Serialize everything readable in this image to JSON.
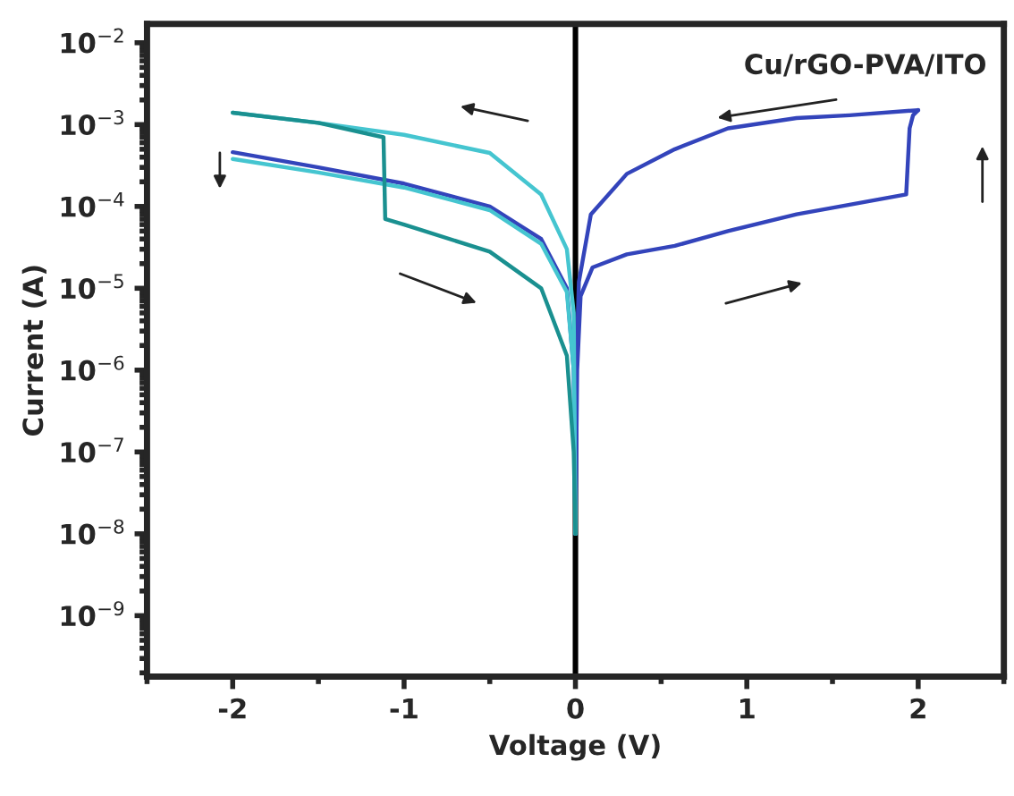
{
  "chart_data": {
    "type": "line",
    "xlabel": "Voltage (V)",
    "ylabel": "Current (A)",
    "log": "y",
    "xlim": [
      -2.5,
      2.5
    ],
    "xticks": [
      -2,
      -1,
      0,
      1,
      2
    ],
    "ylim": [
      1.8e-10,
      0.017
    ],
    "yticks": [
      {
        "value": 0.01,
        "label": "10$^{−2}$"
      },
      {
        "value": 0.001,
        "label": "10$^{−3}$"
      },
      {
        "value": 0.0001,
        "label": "10$^{−4}$"
      },
      {
        "value": 1e-05,
        "label": "10$^{−5}$"
      },
      {
        "value": 1e-06,
        "label": "10$^{−6}$"
      },
      {
        "value": 1e-07,
        "label": "10$^{−7}$"
      },
      {
        "value": 1e-08,
        "label": "10$^{−8}$"
      },
      {
        "value": 1e-09,
        "label": "10$^{−9}$"
      }
    ],
    "grid": false,
    "legend": false,
    "marker": "none",
    "line_style": "solid",
    "ref_lines": [
      {
        "axis": "x",
        "value": 0,
        "color": "#000000",
        "line_style": "solid"
      }
    ],
    "annotations": [
      "Cu/rGO-PVA/ITO"
    ],
    "series": [
      {
        "color": "#3344bb",
        "x": [
          0,
          0.01,
          0.03,
          0.1,
          0.3,
          0.58,
          0.89,
          1.29,
          1.6,
          1.93,
          1.95,
          1.97,
          2.0
        ],
        "values": [
          1e-08,
          1e-06,
          8e-06,
          1.8e-05,
          2.6e-05,
          3.3e-05,
          5e-05,
          8e-05,
          0.000105,
          0.00014,
          0.0009,
          0.0013,
          0.0015
        ]
      },
      {
        "color": "#3344bb",
        "x": [
          0,
          0.005,
          0.02,
          0.09,
          0.3,
          0.58,
          0.89,
          1.29,
          1.6,
          2.0
        ],
        "values": [
          1e-08,
          1e-06,
          1.2e-05,
          8e-05,
          0.00025,
          0.0005,
          0.0009,
          0.0012,
          0.0013,
          0.0015
        ]
      },
      {
        "color": "#3344bb",
        "x": [
          -2,
          -1.5,
          -1,
          -0.5,
          -0.2,
          -0.05,
          -0.01,
          0
        ],
        "values": [
          0.00046,
          0.0003,
          0.00019,
          0.0001,
          4e-05,
          1e-05,
          1e-06,
          1e-08
        ]
      },
      {
        "color": "#45c5d0",
        "x": [
          -2,
          -1.5,
          -1,
          -0.5,
          -0.2,
          -0.05,
          -0.01,
          0
        ],
        "values": [
          0.0014,
          0.00105,
          0.00075,
          0.00045,
          0.00014,
          3e-05,
          5e-06,
          1e-08
        ]
      },
      {
        "color": "#45c5d0",
        "x": [
          -2,
          -1.5,
          -1,
          -0.5,
          -0.2,
          -0.05,
          -0.01,
          0
        ],
        "values": [
          0.00038,
          0.00026,
          0.00017,
          9e-05,
          3.5e-05,
          9e-06,
          1e-06,
          1e-08
        ]
      },
      {
        "color": "#1a9090",
        "x": [
          -2,
          -1.5,
          -1.12,
          -1.11,
          -1.0,
          -0.5,
          -0.2,
          -0.05,
          -0.01,
          0
        ],
        "values": [
          0.0014,
          0.00105,
          0.0007,
          7e-05,
          6e-05,
          2.8e-05,
          1e-05,
          1.5e-06,
          1e-07,
          1e-08
        ]
      }
    ]
  }
}
